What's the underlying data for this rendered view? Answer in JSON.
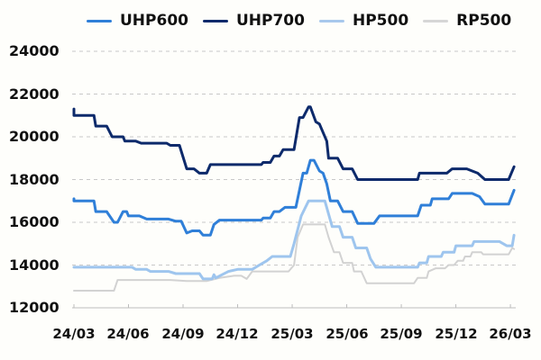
{
  "chart_data": {
    "type": "line",
    "title": "",
    "xlabel": "",
    "ylabel": "",
    "ylim": [
      12000,
      24000
    ],
    "yticks": [
      24000,
      22000,
      20000,
      18000,
      16000,
      14000,
      12000
    ],
    "xticks": [
      "24/03",
      "24/06",
      "24/09",
      "24/12",
      "25/03",
      "25/06",
      "25/09",
      "25/12",
      "26/03"
    ],
    "grid": "horizontal dashed",
    "legend_position": "top",
    "x_unit": "months since 24/03",
    "series": [
      {
        "name": "UHP600",
        "color": "#2f7fd8",
        "width": 3,
        "points": [
          [
            0,
            17100
          ],
          [
            0,
            17000
          ],
          [
            1.1,
            17000
          ],
          [
            1.2,
            16500
          ],
          [
            1.8,
            16500
          ],
          [
            2.2,
            16000
          ],
          [
            2.4,
            16000
          ],
          [
            2.7,
            16500
          ],
          [
            2.9,
            16500
          ],
          [
            3.0,
            16300
          ],
          [
            3.6,
            16300
          ],
          [
            4.0,
            16150
          ],
          [
            5.2,
            16150
          ],
          [
            5.6,
            16050
          ],
          [
            5.9,
            16050
          ],
          [
            6.2,
            15500
          ],
          [
            6.5,
            15600
          ],
          [
            6.9,
            15600
          ],
          [
            7.1,
            15400
          ],
          [
            7.5,
            15400
          ],
          [
            7.7,
            15900
          ],
          [
            8.0,
            16100
          ],
          [
            10.3,
            16100
          ],
          [
            10.4,
            16200
          ],
          [
            10.8,
            16200
          ],
          [
            11.0,
            16500
          ],
          [
            11.3,
            16500
          ],
          [
            11.6,
            16700
          ],
          [
            12.2,
            16700
          ],
          [
            12.4,
            17500
          ],
          [
            12.6,
            18300
          ],
          [
            12.8,
            18300
          ],
          [
            13.0,
            18900
          ],
          [
            13.2,
            18900
          ],
          [
            13.5,
            18400
          ],
          [
            13.7,
            18300
          ],
          [
            13.9,
            17800
          ],
          [
            14.1,
            17000
          ],
          [
            14.5,
            17000
          ],
          [
            14.8,
            16500
          ],
          [
            15.3,
            16500
          ],
          [
            15.6,
            15950
          ],
          [
            16.2,
            15950
          ],
          [
            16.5,
            15950
          ],
          [
            16.8,
            16300
          ],
          [
            18.9,
            16300
          ],
          [
            19.1,
            16800
          ],
          [
            19.6,
            16800
          ],
          [
            19.7,
            17100
          ],
          [
            20.6,
            17100
          ],
          [
            20.8,
            17350
          ],
          [
            21.9,
            17350
          ],
          [
            22.3,
            17200
          ],
          [
            22.6,
            16850
          ],
          [
            23.9,
            16850
          ],
          [
            24.2,
            17500
          ]
        ]
      },
      {
        "name": "UHP700",
        "color": "#0d2a6b",
        "width": 3,
        "points": [
          [
            0,
            21300
          ],
          [
            0,
            21000
          ],
          [
            1.1,
            21000
          ],
          [
            1.2,
            20500
          ],
          [
            1.8,
            20500
          ],
          [
            2.1,
            20000
          ],
          [
            2.7,
            20000
          ],
          [
            2.8,
            19800
          ],
          [
            3.4,
            19800
          ],
          [
            3.7,
            19700
          ],
          [
            5.1,
            19700
          ],
          [
            5.3,
            19600
          ],
          [
            5.8,
            19600
          ],
          [
            6.2,
            18500
          ],
          [
            6.6,
            18500
          ],
          [
            6.9,
            18300
          ],
          [
            7.3,
            18300
          ],
          [
            7.5,
            18700
          ],
          [
            10.3,
            18700
          ],
          [
            10.4,
            18800
          ],
          [
            10.8,
            18800
          ],
          [
            11.0,
            19100
          ],
          [
            11.3,
            19100
          ],
          [
            11.5,
            19400
          ],
          [
            12.1,
            19400
          ],
          [
            12.4,
            20900
          ],
          [
            12.6,
            20900
          ],
          [
            12.9,
            21400
          ],
          [
            13.0,
            21400
          ],
          [
            13.3,
            20700
          ],
          [
            13.5,
            20600
          ],
          [
            13.9,
            19800
          ],
          [
            14.0,
            19000
          ],
          [
            14.5,
            19000
          ],
          [
            14.8,
            18500
          ],
          [
            15.3,
            18500
          ],
          [
            15.6,
            18000
          ],
          [
            18.9,
            18000
          ],
          [
            19.0,
            18300
          ],
          [
            20.5,
            18300
          ],
          [
            20.8,
            18500
          ],
          [
            21.6,
            18500
          ],
          [
            21.9,
            18400
          ],
          [
            22.2,
            18300
          ],
          [
            22.6,
            18000
          ],
          [
            23.9,
            18000
          ],
          [
            24.2,
            18600
          ]
        ]
      },
      {
        "name": "HP500",
        "color": "#9ec5ee",
        "width": 3,
        "points": [
          [
            0,
            13900
          ],
          [
            3.2,
            13900
          ],
          [
            3.4,
            13800
          ],
          [
            4.0,
            13800
          ],
          [
            4.2,
            13700
          ],
          [
            5.2,
            13700
          ],
          [
            5.6,
            13600
          ],
          [
            6.9,
            13600
          ],
          [
            7.1,
            13350
          ],
          [
            7.6,
            13350
          ],
          [
            7.7,
            13550
          ],
          [
            7.8,
            13400
          ],
          [
            8.5,
            13700
          ],
          [
            9.0,
            13800
          ],
          [
            9.8,
            13800
          ],
          [
            10.2,
            14000
          ],
          [
            10.6,
            14200
          ],
          [
            10.9,
            14400
          ],
          [
            11.9,
            14400
          ],
          [
            12.1,
            15000
          ],
          [
            12.5,
            16300
          ],
          [
            12.9,
            17000
          ],
          [
            13.8,
            17000
          ],
          [
            14.2,
            15800
          ],
          [
            14.6,
            15800
          ],
          [
            14.8,
            15300
          ],
          [
            15.3,
            15300
          ],
          [
            15.5,
            14800
          ],
          [
            16.1,
            14800
          ],
          [
            16.3,
            14300
          ],
          [
            16.6,
            13900
          ],
          [
            18.9,
            13900
          ],
          [
            19.0,
            14100
          ],
          [
            19.4,
            14100
          ],
          [
            19.5,
            14400
          ],
          [
            20.2,
            14400
          ],
          [
            20.3,
            14600
          ],
          [
            20.9,
            14600
          ],
          [
            21.0,
            14900
          ],
          [
            21.9,
            14900
          ],
          [
            22.0,
            15100
          ],
          [
            23.4,
            15100
          ],
          [
            23.8,
            14900
          ],
          [
            24.0,
            14900
          ],
          [
            24.1,
            14900
          ],
          [
            24.2,
            15400
          ]
        ]
      },
      {
        "name": "RP500",
        "color": "#d2d2d2",
        "width": 2,
        "points": [
          [
            0,
            12800
          ],
          [
            2.2,
            12800
          ],
          [
            2.4,
            13300
          ],
          [
            5.3,
            13300
          ],
          [
            6.2,
            13250
          ],
          [
            7.3,
            13250
          ],
          [
            8.0,
            13400
          ],
          [
            8.8,
            13500
          ],
          [
            9.2,
            13500
          ],
          [
            9.5,
            13350
          ],
          [
            9.8,
            13700
          ],
          [
            11.8,
            13700
          ],
          [
            12.1,
            14000
          ],
          [
            12.3,
            15300
          ],
          [
            12.6,
            15900
          ],
          [
            13.8,
            15900
          ],
          [
            14.0,
            15300
          ],
          [
            14.3,
            14600
          ],
          [
            14.6,
            14600
          ],
          [
            14.8,
            14100
          ],
          [
            15.3,
            14100
          ],
          [
            15.4,
            13700
          ],
          [
            15.8,
            13700
          ],
          [
            16.1,
            13150
          ],
          [
            18.7,
            13150
          ],
          [
            18.9,
            13400
          ],
          [
            19.4,
            13400
          ],
          [
            19.5,
            13700
          ],
          [
            19.9,
            13850
          ],
          [
            20.4,
            13850
          ],
          [
            20.6,
            14000
          ],
          [
            20.9,
            14000
          ],
          [
            21.1,
            14200
          ],
          [
            21.4,
            14200
          ],
          [
            21.5,
            14400
          ],
          [
            21.8,
            14400
          ],
          [
            21.9,
            14600
          ],
          [
            22.4,
            14600
          ],
          [
            22.5,
            14500
          ],
          [
            23.9,
            14500
          ],
          [
            24.1,
            14800
          ],
          [
            24.2,
            14750
          ]
        ]
      }
    ]
  },
  "legend": {
    "items": [
      {
        "label": "UHP600",
        "color": "#2f7fd8"
      },
      {
        "label": "UHP700",
        "color": "#0d2a6b"
      },
      {
        "label": "HP500",
        "color": "#a8c8ec"
      },
      {
        "label": "RP500",
        "color": "#d6d6d6"
      }
    ]
  },
  "axes": {
    "y_labels": [
      "24000",
      "22000",
      "20000",
      "18000",
      "16000",
      "14000",
      "12000"
    ],
    "x_labels": [
      "24/03",
      "24/06",
      "24/09",
      "24/12",
      "25/03",
      "25/06",
      "25/09",
      "25/12",
      "26/03"
    ]
  }
}
